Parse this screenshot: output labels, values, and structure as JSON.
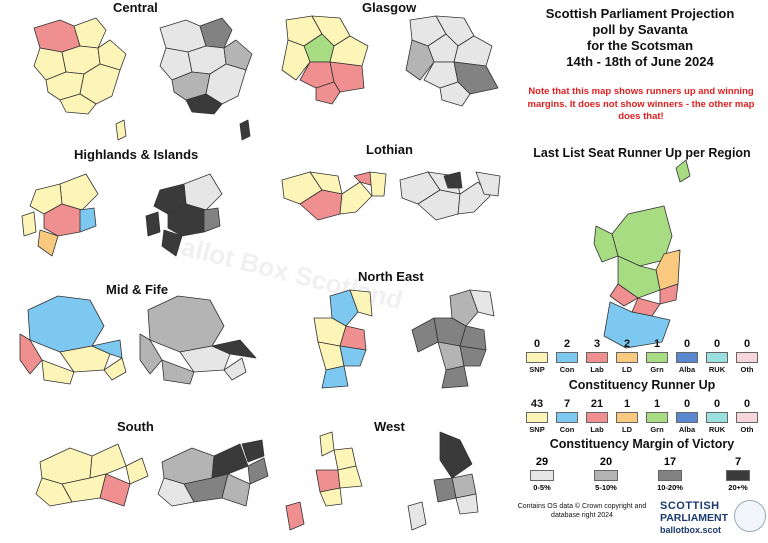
{
  "title_lines": [
    "Scottish Parliament Projection",
    "poll by Savanta",
    "for the Scotsman",
    "14th - 18th of June 2024"
  ],
  "note": "Note that this map shows runners up and winning margins. It does not show winners - the other map does that!",
  "watermark": "Ballot Box Scotland",
  "regions": {
    "central": "Central",
    "glasgow": "Glasgow",
    "highlands": "Highlands & Islands",
    "lothian": "Lothian",
    "midfife": "Mid & Fife",
    "northeast": "North East",
    "south": "South",
    "west": "West"
  },
  "party_colors": {
    "SNP": "#fdf5b8",
    "Con": "#7dc8f0",
    "Lab": "#f08f8f",
    "LD": "#f8c97e",
    "Grn": "#a8dc82",
    "Alba": "#5a88d0",
    "RUK": "#9ae0df",
    "Oth": "#f7d5dc"
  },
  "margin_colors": {
    "0-5%": "#e6e6e6",
    "5-10%": "#b4b4b4",
    "10-20%": "#828282",
    "20+%": "#3a3a3a"
  },
  "list_runner_up": {
    "title": "Last List Seat Runner Up per Region",
    "items": [
      {
        "party": "SNP",
        "count": "0"
      },
      {
        "party": "Con",
        "count": "2"
      },
      {
        "party": "Lab",
        "count": "3"
      },
      {
        "party": "LD",
        "count": "2"
      },
      {
        "party": "Grn",
        "count": "1"
      },
      {
        "party": "Alba",
        "count": "0"
      },
      {
        "party": "RUK",
        "count": "0"
      },
      {
        "party": "Oth",
        "count": "0"
      }
    ]
  },
  "constituency_runner_up": {
    "title": "Constituency Runner Up",
    "items": [
      {
        "party": "SNP",
        "count": "43"
      },
      {
        "party": "Con",
        "count": "7"
      },
      {
        "party": "Lab",
        "count": "21"
      },
      {
        "party": "LD",
        "count": "1"
      },
      {
        "party": "Grn",
        "count": "1"
      },
      {
        "party": "Alba",
        "count": "0"
      },
      {
        "party": "RUK",
        "count": "0"
      },
      {
        "party": "Oth",
        "count": "0"
      }
    ]
  },
  "margin_of_victory": {
    "title": "Constituency Margin of Victory",
    "items": [
      {
        "band": "0-5%",
        "count": "29"
      },
      {
        "band": "5-10%",
        "count": "20"
      },
      {
        "band": "10-20%",
        "count": "17"
      },
      {
        "band": "20+%",
        "count": "7"
      }
    ]
  },
  "credit": "Contains OS data © Crown copyright and database right 2024",
  "logo": {
    "line1": "SCOTTISH",
    "line2": "PARLIAMENT",
    "line3": "ballotbox.scot"
  }
}
